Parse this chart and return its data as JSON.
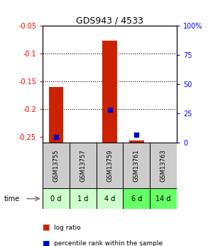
{
  "title": "GDS943 / 4533",
  "samples": [
    "GSM13755",
    "GSM13757",
    "GSM13759",
    "GSM13761",
    "GSM13763"
  ],
  "time_labels": [
    "0 d",
    "1 d",
    "4 d",
    "6 d",
    "14 d"
  ],
  "time_colors": [
    "#ccffcc",
    "#ccffcc",
    "#ccffcc",
    "#66ff66",
    "#66ff66"
  ],
  "log_ratios": [
    -0.16,
    null,
    -0.077,
    -0.256,
    null
  ],
  "percentile_ranks": [
    5.0,
    null,
    28.0,
    7.0,
    null
  ],
  "ylim_left": [
    -0.26,
    -0.05
  ],
  "ylim_right": [
    0,
    100
  ],
  "yticks_left": [
    -0.25,
    -0.2,
    -0.15,
    -0.1,
    -0.05
  ],
  "yticks_right": [
    0,
    25,
    50,
    75,
    100
  ],
  "bar_color_red": "#cc2200",
  "bar_color_blue": "#0000cc",
  "legend_red": "log ratio",
  "legend_blue": "percentile rank within the sample",
  "sample_bg": "#cccccc",
  "bar_width": 0.55
}
